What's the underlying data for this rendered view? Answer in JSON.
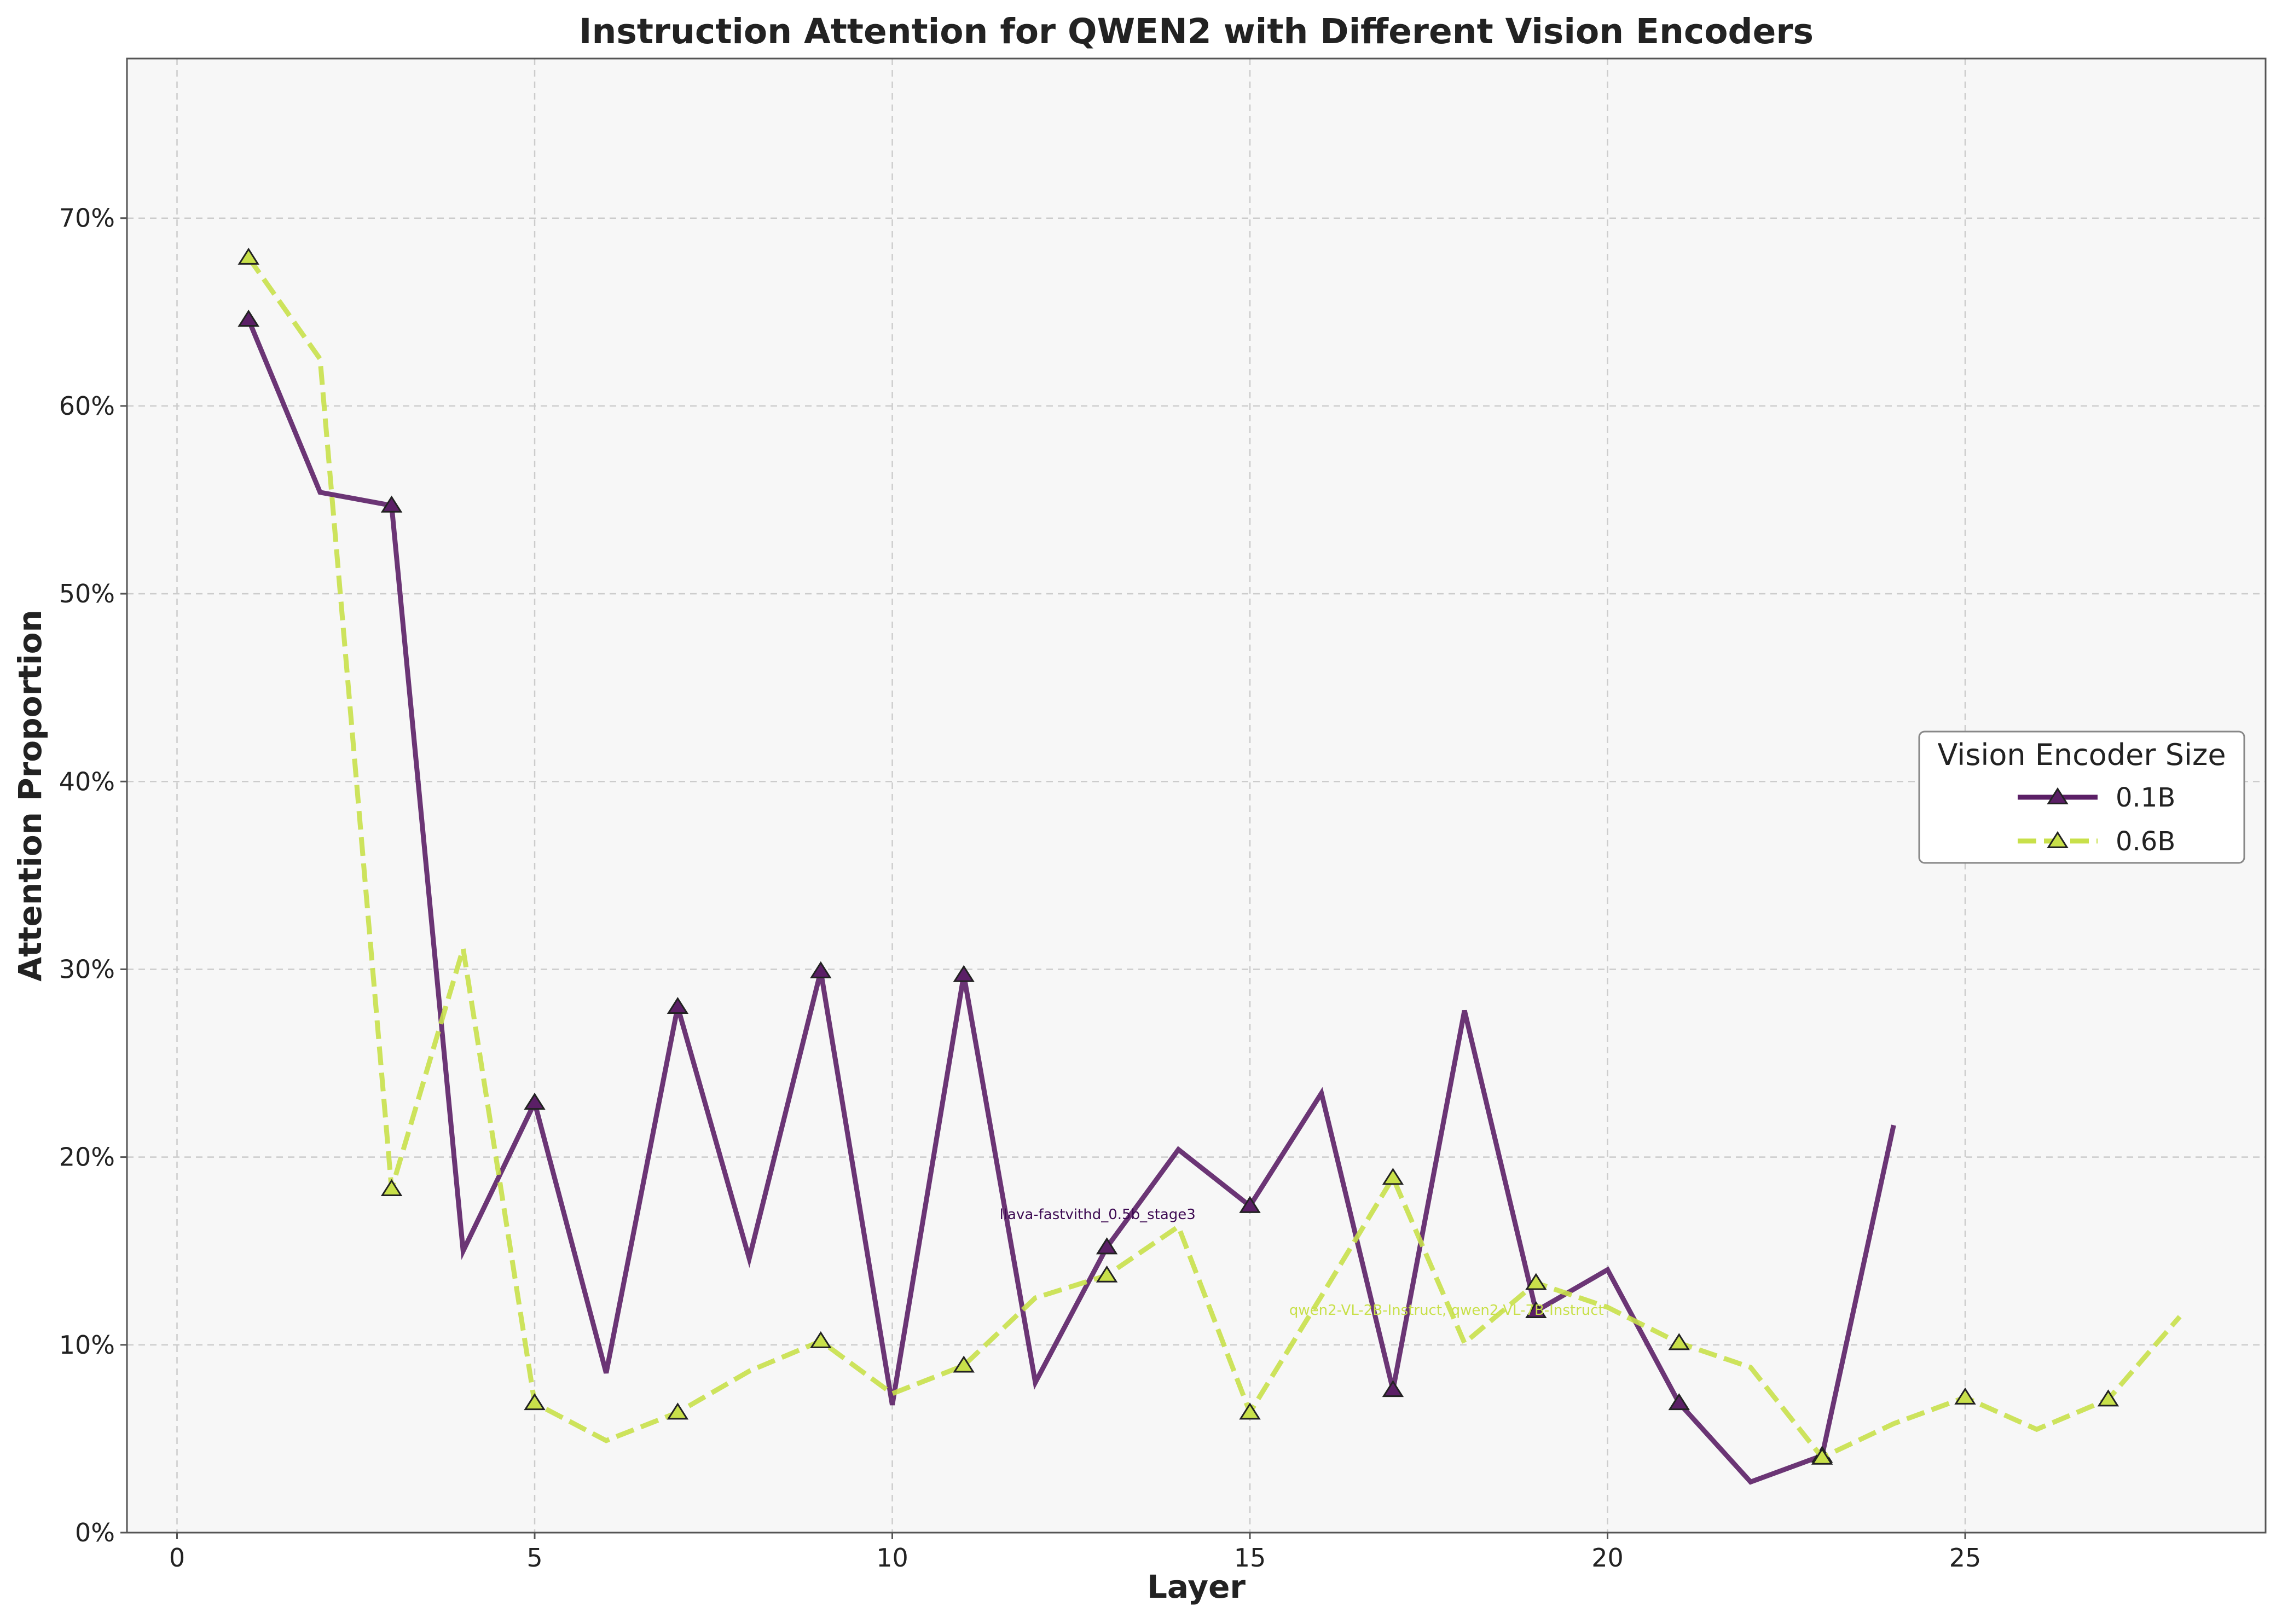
{
  "chart_data": {
    "type": "line",
    "title": "Instruction Attention for QWEN2 with Different Vision Encoders",
    "xlabel": "Layer",
    "ylabel": "Attention Proportion",
    "xlim": [
      -0.7,
      29.2
    ],
    "ylim": [
      0,
      78.5
    ],
    "xticks": [
      0,
      5,
      10,
      15,
      20,
      25
    ],
    "yticks": [
      0,
      10,
      20,
      30,
      40,
      50,
      60,
      70
    ],
    "ytick_labels": [
      "0%",
      "10%",
      "20%",
      "30%",
      "40%",
      "50%",
      "60%",
      "70%"
    ],
    "grid": true,
    "legend": {
      "title": "Vision Encoder Size",
      "placement": "center-right"
    },
    "series": [
      {
        "name": "0.1B",
        "color": "#5b1f66",
        "line_style": "solid",
        "marker": "triangle",
        "marker_every": 2,
        "x": [
          1,
          2,
          3,
          4,
          5,
          6,
          7,
          8,
          9,
          10,
          11,
          12,
          13,
          14,
          15,
          16,
          17,
          18,
          19,
          20,
          21,
          22,
          23,
          24
        ],
        "values": [
          64.6,
          55.4,
          54.7,
          15.0,
          22.9,
          8.5,
          28.0,
          14.6,
          29.9,
          6.8,
          29.7,
          8.0,
          15.2,
          20.4,
          17.4,
          23.4,
          7.6,
          27.8,
          11.8,
          14.0,
          6.9,
          2.7,
          4.1,
          21.7
        ]
      },
      {
        "name": "0.6B",
        "color": "#c8e04a",
        "line_style": "dashed",
        "marker": "triangle",
        "marker_every": 2,
        "x": [
          1,
          2,
          3,
          4,
          5,
          6,
          7,
          8,
          9,
          10,
          11,
          12,
          13,
          14,
          15,
          16,
          17,
          18,
          19,
          20,
          21,
          22,
          23,
          24,
          25,
          26,
          27,
          28
        ],
        "values": [
          67.9,
          62.5,
          18.3,
          31.1,
          6.9,
          4.9,
          6.4,
          8.6,
          10.2,
          7.4,
          8.9,
          12.5,
          13.7,
          16.3,
          6.4,
          12.6,
          18.9,
          10.1,
          13.3,
          12.0,
          10.1,
          8.8,
          4.0,
          5.8,
          7.2,
          5.5,
          7.1,
          11.5
        ]
      }
    ],
    "annotations": [
      {
        "text": "llava-fastvithd_0.5b_stage3",
        "x": 11.5,
        "y": 16.7,
        "color": "#3d0a52"
      },
      {
        "text": "qwen2-VL-2B-Instruct, qwen2-VL-7B-Instruct",
        "x": 15.55,
        "y": 11.6,
        "color": "#c8e04a"
      }
    ]
  }
}
